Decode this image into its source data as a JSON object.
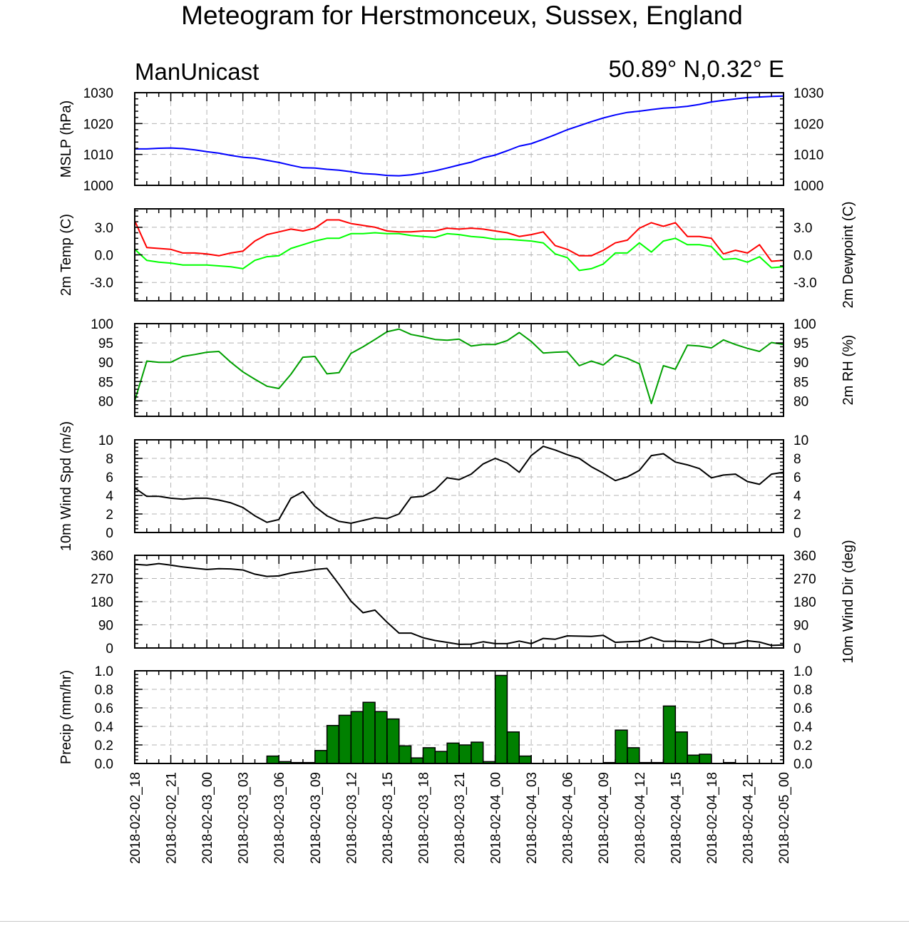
{
  "title": "Meteogram for Herstmonceux, Sussex, England",
  "model_label": "ManUnicast",
  "location_label": "50.89° N,0.32° E",
  "chart_data": {
    "type": "meteogram",
    "time_labels": [
      "2018-02-02_18",
      "2018-02-02_21",
      "2018-02-03_00",
      "2018-02-03_03",
      "2018-02-03_06",
      "2018-02-03_09",
      "2018-02-03_12",
      "2018-02-03_15",
      "2018-02-03_18",
      "2018-02-03_21",
      "2018-02-04_00",
      "2018-02-04_03",
      "2018-02-04_06",
      "2018-02-04_09",
      "2018-02-04_12",
      "2018-02-04_15",
      "2018-02-04_18",
      "2018-02-04_21",
      "2018-02-05_00"
    ],
    "x_hours": [
      0,
      1,
      2,
      3,
      4,
      5,
      6,
      7,
      8,
      9,
      10,
      11,
      12,
      13,
      14,
      15,
      16,
      17,
      18,
      19,
      20,
      21,
      22,
      23,
      24,
      25,
      26,
      27,
      28,
      29,
      30,
      31,
      32,
      33,
      34,
      35,
      36,
      37,
      38,
      39,
      40,
      41,
      42,
      43,
      44,
      45,
      46,
      47,
      48,
      49,
      50,
      51,
      52,
      53,
      54
    ],
    "panels": [
      {
        "id": "mslp",
        "ylabel_left": "MSLP (hPa)",
        "ylabel_right": "",
        "ylim": [
          1000,
          1030
        ],
        "yticks": [
          1000,
          1010,
          1020,
          1030
        ],
        "tick_labels_left": [
          "1000",
          "1010",
          "1020",
          "1030"
        ],
        "tick_labels_right": [
          "1000",
          "1010",
          "1020",
          "1030"
        ],
        "series": [
          {
            "color": "#0000ff",
            "values": [
              1011.8,
              1011.8,
              1012.0,
              1012.1,
              1011.9,
              1011.5,
              1010.9,
              1010.4,
              1009.7,
              1009.1,
              1008.8,
              1008.1,
              1007.4,
              1006.5,
              1005.7,
              1005.6,
              1005.2,
              1004.9,
              1004.4,
              1003.8,
              1003.6,
              1003.2,
              1003.1,
              1003.4,
              1004.0,
              1004.7,
              1005.6,
              1006.6,
              1007.5,
              1008.9,
              1009.8,
              1011.2,
              1012.7,
              1013.5,
              1014.9,
              1016.4,
              1018.0,
              1019.3,
              1020.6,
              1021.8,
              1022.8,
              1023.6,
              1024.0,
              1024.5,
              1025.0,
              1025.2,
              1025.6,
              1026.2,
              1027.0,
              1027.5,
              1028.0,
              1028.4,
              1028.6,
              1028.8,
              1028.9
            ]
          }
        ]
      },
      {
        "id": "temp",
        "ylabel_left": "2m Temp (C)",
        "ylabel_right": "2m Dewpoint (C)",
        "ylim": [
          -5,
          5
        ],
        "yticks": [
          -3,
          0,
          3
        ],
        "tick_labels_left": [
          "-3.0",
          "0.0",
          "3.0"
        ],
        "tick_labels_right": [
          "-3.0",
          "0.0",
          "3.0"
        ],
        "series": [
          {
            "color": "#ff0000",
            "values": [
              3.7,
              0.8,
              0.7,
              0.6,
              0.2,
              0.2,
              0.1,
              -0.1,
              0.2,
              0.4,
              1.5,
              2.2,
              2.5,
              2.8,
              2.6,
              2.9,
              3.8,
              3.8,
              3.4,
              3.2,
              3.0,
              2.6,
              2.5,
              2.5,
              2.6,
              2.6,
              2.9,
              2.8,
              2.9,
              2.8,
              2.6,
              2.4,
              2.0,
              2.2,
              2.5,
              1.0,
              0.6,
              -0.1,
              -0.1,
              0.5,
              1.3,
              1.6,
              2.9,
              3.5,
              3.1,
              3.5,
              2.0,
              2.0,
              1.8,
              0.1,
              0.5,
              0.2,
              1.1,
              -0.7,
              -0.6
            ]
          },
          {
            "color": "#00ff00",
            "values": [
              0.6,
              -0.6,
              -0.8,
              -0.9,
              -1.1,
              -1.1,
              -1.1,
              -1.2,
              -1.3,
              -1.5,
              -0.6,
              -0.2,
              -0.1,
              0.7,
              1.1,
              1.5,
              1.8,
              1.8,
              2.3,
              2.3,
              2.4,
              2.3,
              2.3,
              2.1,
              2.0,
              1.9,
              2.3,
              2.2,
              2.0,
              1.9,
              1.7,
              1.7,
              1.6,
              1.5,
              1.3,
              0.1,
              -0.3,
              -1.7,
              -1.5,
              -1.0,
              0.2,
              0.2,
              1.3,
              0.3,
              1.5,
              1.8,
              1.1,
              1.1,
              0.9,
              -0.5,
              -0.4,
              -0.8,
              -0.2,
              -1.4,
              -1.3
            ]
          }
        ]
      },
      {
        "id": "rh",
        "ylabel_left": "",
        "ylabel_right": "2m RH (%)",
        "ylim": [
          76,
          100
        ],
        "yticks": [
          80,
          85,
          90,
          95,
          100
        ],
        "tick_labels_left": [
          "80",
          "85",
          "90",
          "95",
          "100"
        ],
        "tick_labels_right": [
          "80",
          "85",
          "90",
          "95",
          "100"
        ],
        "series": [
          {
            "color": "#00a000",
            "values": [
              80,
              90.3,
              90.0,
              90.0,
              91.5,
              92.0,
              92.6,
              92.8,
              90.0,
              87.5,
              85.6,
              83.8,
              83.2,
              86.9,
              91.3,
              91.5,
              87.0,
              87.3,
              92.3,
              94.0,
              95.9,
              97.9,
              98.6,
              97.2,
              96.6,
              95.9,
              95.7,
              96.0,
              94.2,
              94.6,
              94.6,
              95.6,
              97.7,
              95.4,
              92.4,
              92.6,
              92.7,
              89.1,
              90.3,
              89.3,
              91.9,
              91.0,
              89.6,
              79.3,
              89.1,
              88.2,
              94.4,
              94.2,
              93.7,
              95.8,
              94.6,
              93.6,
              92.8,
              95.1,
              94.6
            ]
          }
        ]
      },
      {
        "id": "wspd",
        "ylabel_left": "10m Wind Spd (m/s)",
        "ylabel_right": "",
        "ylim": [
          0,
          10
        ],
        "yticks": [
          0,
          2,
          4,
          6,
          8,
          10
        ],
        "tick_labels_left": [
          "0",
          "2",
          "4",
          "6",
          "8",
          "10"
        ],
        "tick_labels_right": [
          "0",
          "2",
          "4",
          "6",
          "8",
          "10"
        ],
        "series": [
          {
            "color": "#000000",
            "values": [
              4.8,
              3.9,
              3.9,
              3.7,
              3.6,
              3.7,
              3.7,
              3.5,
              3.2,
              2.7,
              1.8,
              1.1,
              1.4,
              3.7,
              4.4,
              2.8,
              1.8,
              1.2,
              1.0,
              1.3,
              1.6,
              1.5,
              2.0,
              3.8,
              3.9,
              4.6,
              5.9,
              5.7,
              6.3,
              7.4,
              8.0,
              7.5,
              6.5,
              8.3,
              9.3,
              8.9,
              8.4,
              8.0,
              7.1,
              6.4,
              5.6,
              6.0,
              6.7,
              8.3,
              8.5,
              7.6,
              7.3,
              6.9,
              5.9,
              6.2,
              6.3,
              5.5,
              5.2,
              6.3,
              6.5
            ]
          }
        ]
      },
      {
        "id": "wdir",
        "ylabel_left": "",
        "ylabel_right": "10m Wind Dir (deg)",
        "ylim": [
          0,
          360
        ],
        "yticks": [
          0,
          90,
          180,
          270,
          360
        ],
        "tick_labels_left": [
          "0",
          "90",
          "180",
          "270",
          "360"
        ],
        "tick_labels_right": [
          "0",
          "90",
          "180",
          "270",
          "360"
        ],
        "series": [
          {
            "color": "#000000",
            "values": [
              325,
              322,
              328,
              322,
              315,
              310,
              305,
              308,
              307,
              303,
              287,
              278,
              280,
              291,
              297,
              305,
              309,
              247,
              182,
              137,
              147,
              100,
              58,
              58,
              40,
              29,
              22,
              14,
              15,
              24,
              17,
              17,
              27,
              17,
              37,
              34,
              47,
              46,
              45,
              49,
              22,
              24,
              26,
              42,
              26,
              26,
              24,
              22,
              34,
              16,
              18,
              28,
              23,
              10,
              12
            ]
          }
        ]
      },
      {
        "id": "precip",
        "ylabel_left": "Precip (mm/hr)",
        "ylabel_right": "",
        "ylim": [
          0,
          1.0
        ],
        "yticks": [
          0,
          0.2,
          0.4,
          0.6,
          0.8,
          1.0
        ],
        "tick_labels_left": [
          "0.0",
          "0.2",
          "0.4",
          "0.6",
          "0.8",
          "1.0"
        ],
        "tick_labels_right": [
          "0.0",
          "0.2",
          "0.4",
          "0.6",
          "0.8",
          "1.0"
        ],
        "bar_fill": "#008000",
        "bars": [
          0,
          0,
          0,
          0,
          0,
          0,
          0,
          0,
          0,
          0,
          0,
          0.08,
          0.02,
          0.01,
          0.01,
          0.14,
          0.41,
          0.52,
          0.56,
          0.66,
          0.56,
          0.48,
          0.19,
          0.06,
          0.17,
          0.13,
          0.22,
          0.2,
          0.23,
          0.02,
          0.95,
          0.34,
          0.08,
          0,
          0,
          0,
          0,
          0,
          0,
          0.01,
          0.36,
          0.17,
          0.01,
          0.01,
          0.62,
          0.34,
          0.09,
          0.1,
          0,
          0.01,
          0,
          0,
          0,
          0,
          0
        ]
      }
    ]
  }
}
